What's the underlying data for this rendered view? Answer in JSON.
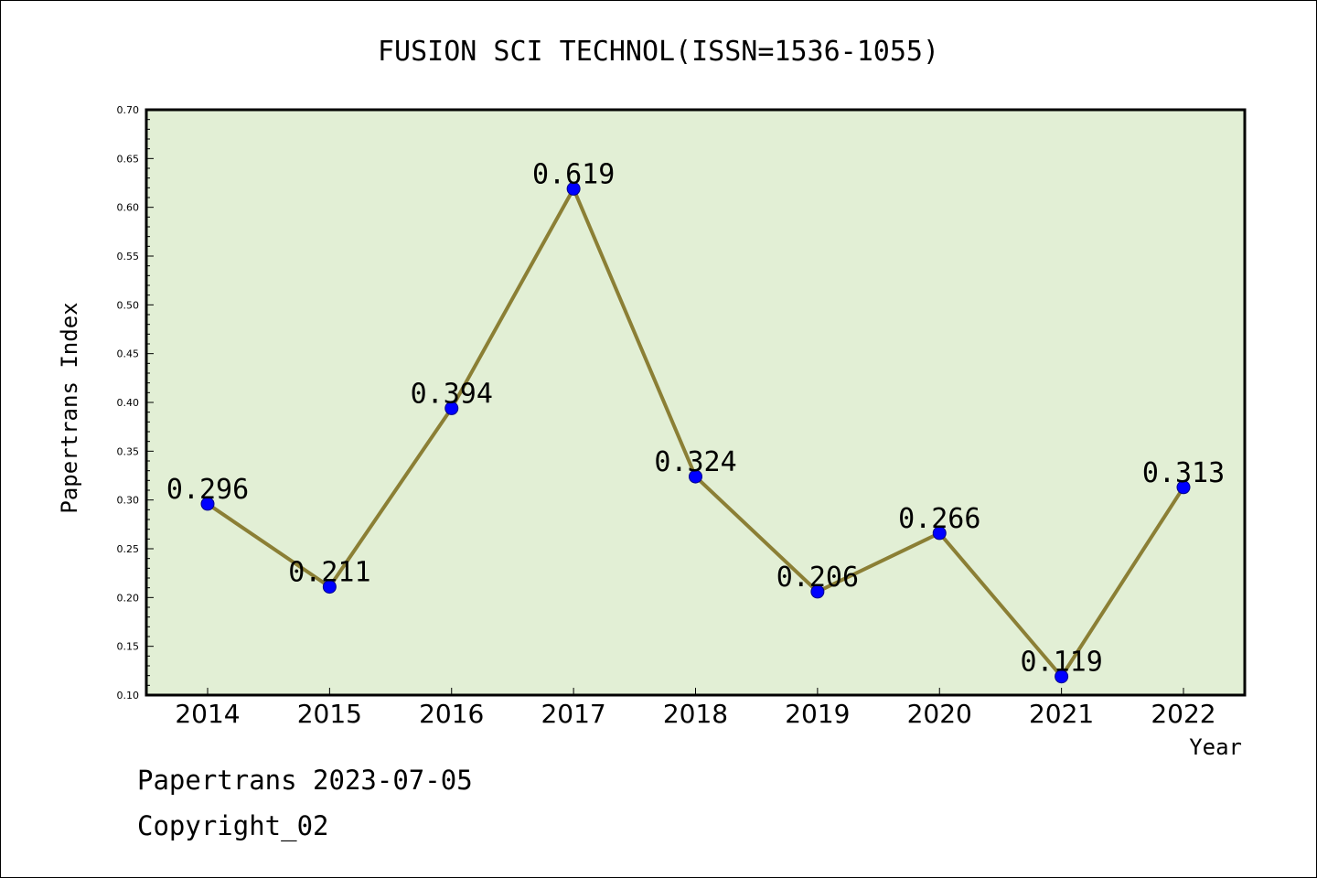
{
  "chart_data": {
    "type": "line",
    "title": "FUSION SCI TECHNOL(ISSN=1536-1055)",
    "xlabel": "Year",
    "ylabel": "Papertrans Index",
    "categories": [
      "2014",
      "2015",
      "2016",
      "2017",
      "2018",
      "2019",
      "2020",
      "2021",
      "2022"
    ],
    "values": [
      0.296,
      0.211,
      0.394,
      0.619,
      0.324,
      0.206,
      0.266,
      0.119,
      0.313
    ],
    "data_labels": [
      "0.296",
      "0.211",
      "0.394",
      "0.619",
      "0.324",
      "0.206",
      "0.266",
      "0.119",
      "0.313"
    ],
    "ylim": [
      0.1,
      0.7
    ],
    "yticks": [
      "0.10",
      "0.15",
      "0.20",
      "0.25",
      "0.30",
      "0.35",
      "0.40",
      "0.45",
      "0.50",
      "0.55",
      "0.60",
      "0.65",
      "0.70"
    ],
    "grid": false,
    "colors": {
      "plot_background": "#e2efd5",
      "line": "#8b7f35",
      "marker": "#0000ff"
    }
  },
  "footer": {
    "line1": "Papertrans 2023-07-05",
    "line2": "Copyright_02"
  }
}
